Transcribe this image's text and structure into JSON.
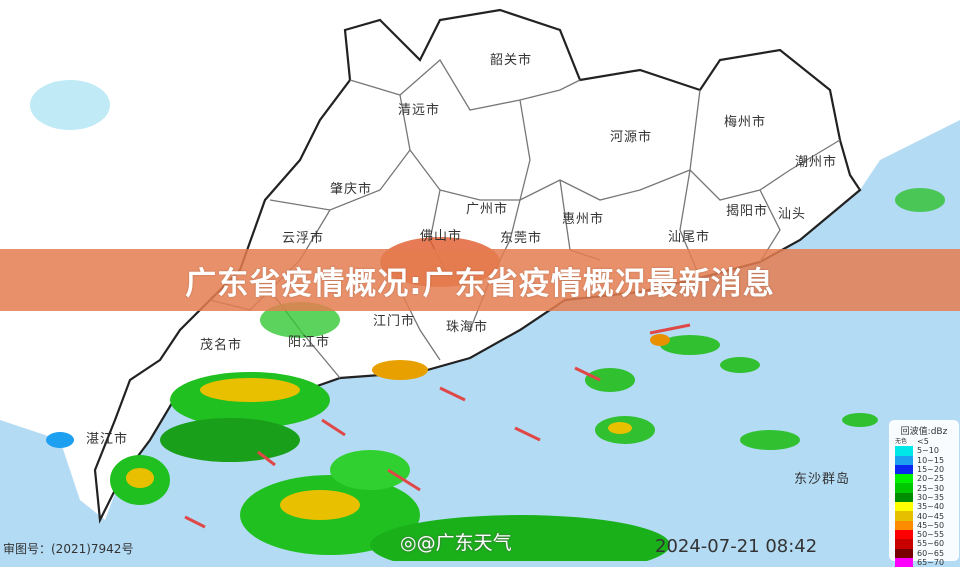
{
  "headline": "广东省疫情概况:广东省疫情概况最新消息",
  "cities": [
    {
      "name": "韶关市"
    },
    {
      "name": "清远市"
    },
    {
      "name": "河源市"
    },
    {
      "name": "梅州市"
    },
    {
      "name": "潮州市"
    },
    {
      "name": "肇庆市"
    },
    {
      "name": "广州市"
    },
    {
      "name": "惠州市"
    },
    {
      "name": "揭阳市"
    },
    {
      "name": "汕头"
    },
    {
      "name": "佛山市"
    },
    {
      "name": "东莞市"
    },
    {
      "name": "汕尾市"
    },
    {
      "name": "云浮市"
    },
    {
      "name": "江门市"
    },
    {
      "name": "珠海市"
    },
    {
      "name": "茂名市"
    },
    {
      "name": "阳江市"
    },
    {
      "name": "湛江市"
    },
    {
      "name": "东沙群岛"
    }
  ],
  "footer": {
    "approval_number": "审图号：(2021)7942号",
    "watermark": "@广东天气",
    "timestamp": "2024-07-21 08:42"
  },
  "legend": {
    "title": "回波值:dBz",
    "none_label": "无色",
    "none_range": "<5",
    "items": [
      {
        "range": "5~10",
        "color": "#00e8e8"
      },
      {
        "range": "10~15",
        "color": "#1ea0f0"
      },
      {
        "range": "15~20",
        "color": "#0a28f0"
      },
      {
        "range": "20~25",
        "color": "#00f000"
      },
      {
        "range": "25~30",
        "color": "#00c800"
      },
      {
        "range": "30~35",
        "color": "#008c00"
      },
      {
        "range": "35~40",
        "color": "#ffff00"
      },
      {
        "range": "40~45",
        "color": "#e6c000"
      },
      {
        "range": "45~50",
        "color": "#ff8c00"
      },
      {
        "range": "50~55",
        "color": "#ff0000"
      },
      {
        "range": "55~60",
        "color": "#c80000"
      },
      {
        "range": "60~65",
        "color": "#780000"
      },
      {
        "range": "65~70",
        "color": "#ff00ff"
      }
    ]
  },
  "colors": {
    "sea": "#b3dbf4",
    "land": "#ffffff",
    "banner": "#e47c50"
  }
}
